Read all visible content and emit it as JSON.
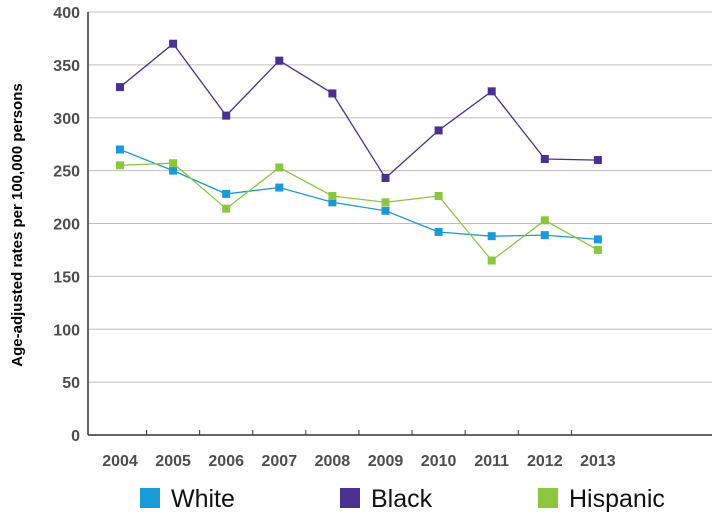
{
  "chart_data": {
    "type": "line",
    "title": "",
    "xlabel": "",
    "ylabel": "Age-adjusted rates per 100,000 persons",
    "x": [
      "2004",
      "2005",
      "2006",
      "2007",
      "2008",
      "2009",
      "2010",
      "2011",
      "2012",
      "2013"
    ],
    "ylim": [
      0,
      400
    ],
    "yticks": [
      0,
      50,
      100,
      150,
      200,
      250,
      300,
      350,
      400
    ],
    "grid": true,
    "legend_position": "bottom",
    "series": [
      {
        "name": "White",
        "color": "#1a9ad6",
        "values": [
          270,
          250,
          228,
          234,
          220,
          212,
          192,
          188,
          189,
          185
        ]
      },
      {
        "name": "Black",
        "color": "#4b2f91",
        "values": [
          329,
          370,
          302,
          354,
          323,
          243,
          288,
          325,
          261,
          260
        ]
      },
      {
        "name": "Hispanic",
        "color": "#8cc63f",
        "values": [
          255,
          257,
          214,
          253,
          226,
          220,
          226,
          165,
          203,
          175
        ]
      }
    ]
  }
}
